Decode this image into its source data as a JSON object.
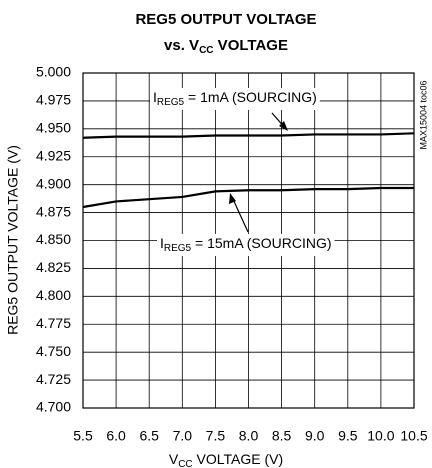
{
  "chart_data": {
    "type": "line",
    "title": [
      "REG5 OUTPUT VOLTAGE",
      [
        "vs. V",
        "CC",
        " VOLTAGE"
      ]
    ],
    "x_label": [
      "V",
      "CC",
      " VOLTAGE (V)"
    ],
    "y_label": "REG5 OUTPUT VOLTAGE (V)",
    "side_note": "MAX15004 toc06",
    "x": [
      5.5,
      6.0,
      6.5,
      7.0,
      7.5,
      8.0,
      8.5,
      9.0,
      9.5,
      10.0,
      10.5
    ],
    "series": [
      {
        "name": [
          "I",
          "REG5",
          " = 1mA (SOURCING)"
        ],
        "color": "#000000",
        "values": [
          4.942,
          4.943,
          4.943,
          4.943,
          4.944,
          4.944,
          4.944,
          4.945,
          4.945,
          4.945,
          4.946
        ]
      },
      {
        "name": [
          "I",
          "REG5",
          " = 15mA (SOURCING)"
        ],
        "color": "#000000",
        "values": [
          4.88,
          4.885,
          4.887,
          4.889,
          4.894,
          4.895,
          4.895,
          4.896,
          4.896,
          4.897,
          4.897
        ]
      }
    ],
    "xlim": [
      5.5,
      10.5
    ],
    "xticks": [
      5.5,
      {
        "value": 6,
        "label": "6.0"
      },
      6.5,
      {
        "value": 7,
        "label": "7.0"
      },
      7.5,
      {
        "value": 8,
        "label": "8.0"
      },
      8.5,
      {
        "value": 9,
        "label": "9.0"
      },
      9.5,
      {
        "value": 10,
        "label": "10.0"
      },
      10.5
    ],
    "ylim": [
      4.7,
      5.0
    ],
    "yticks": [
      {
        "value": 4.7,
        "label": "4.700"
      },
      4.725,
      {
        "value": 4.75,
        "label": "4.750"
      },
      4.775,
      {
        "value": 4.8,
        "label": "4.800"
      },
      4.825,
      {
        "value": 4.85,
        "label": "4.850"
      },
      4.875,
      {
        "value": 4.9,
        "label": "4.900"
      },
      4.925,
      {
        "value": 4.95,
        "label": "4.950"
      },
      4.975,
      {
        "value": 5,
        "label": "5.000"
      }
    ],
    "grid": true
  }
}
